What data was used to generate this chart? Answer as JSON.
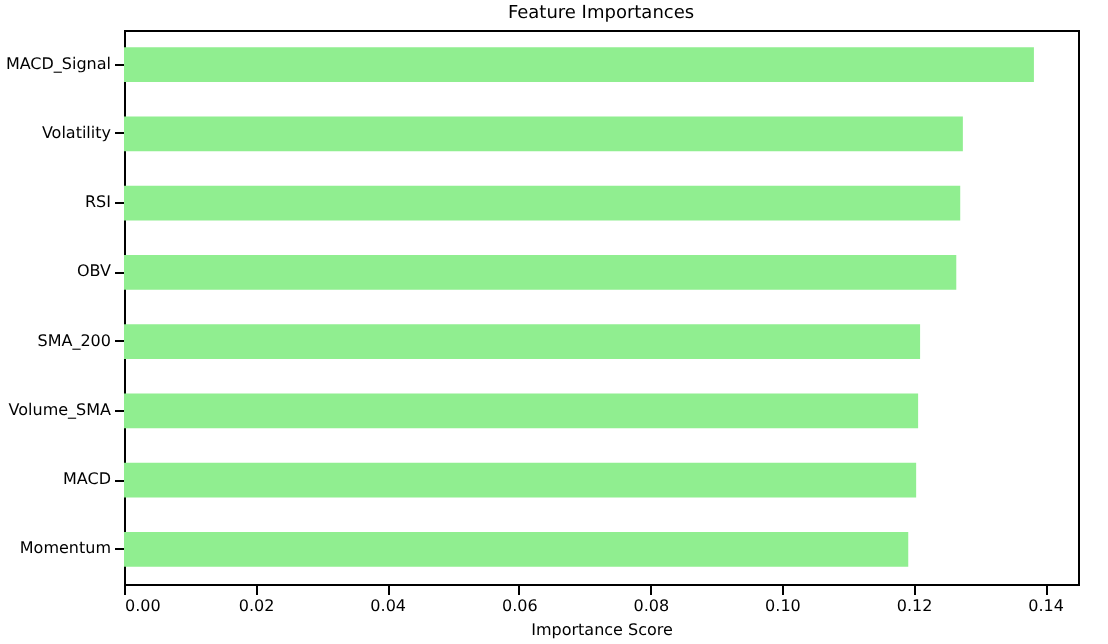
{
  "chart_data": {
    "type": "bar",
    "orientation": "horizontal",
    "title": "Feature Importances",
    "xlabel": "Importance Score",
    "categories": [
      "MACD_Signal",
      "Volatility",
      "RSI",
      "OBV",
      "SMA_200",
      "Volume_SMA",
      "MACD",
      "Momentum"
    ],
    "values": [
      0.1383,
      0.1275,
      0.1271,
      0.1265,
      0.121,
      0.1207,
      0.1204,
      0.1192
    ],
    "color": "#90ee90",
    "xlim": [
      0,
      0.145
    ],
    "xticks": [
      {
        "value": 0,
        "label": "0.00"
      },
      {
        "value": 0.02,
        "label": "0.02"
      },
      {
        "value": 0.04,
        "label": "0.04"
      },
      {
        "value": 0.06,
        "label": "0.06"
      },
      {
        "value": 0.08,
        "label": "0.08"
      },
      {
        "value": 0.1,
        "label": "0.10"
      },
      {
        "value": 0.12,
        "label": "0.12"
      },
      {
        "value": 0.14,
        "label": "0.14"
      }
    ],
    "grid": false
  }
}
